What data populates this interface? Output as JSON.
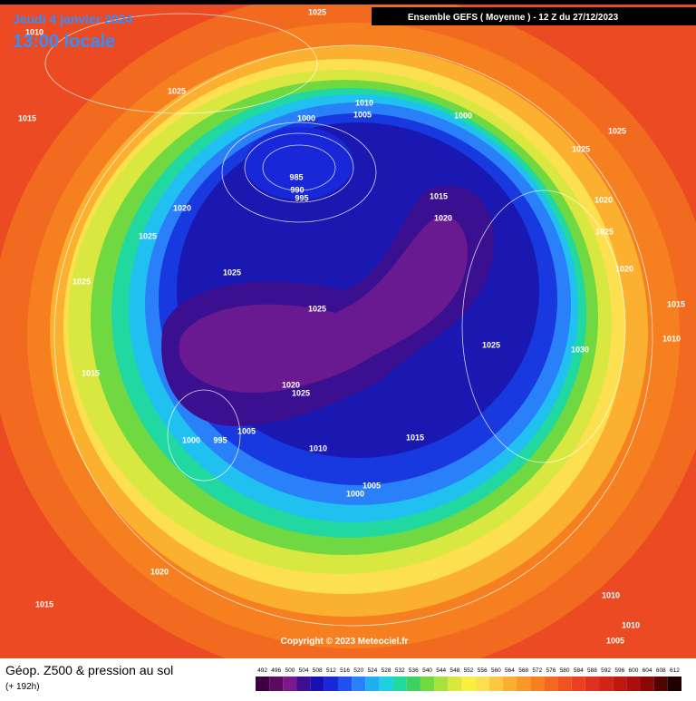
{
  "header": {
    "date": "Jeudi 4 janvier 2024",
    "time": "13:00 locale",
    "model": "Ensemble GEFS  ( Moyenne )  -  12 Z du 27/12/2023"
  },
  "isobars": [
    "1025",
    "1010",
    "1025",
    "1015",
    "1000",
    "1010",
    "1005",
    "1000",
    "1025",
    "1025",
    "985",
    "990",
    "995",
    "1015",
    "1020",
    "1020",
    "1025",
    "1020",
    "1025",
    "1020",
    "1025",
    "1025",
    "1025",
    "1015",
    "1010",
    "1025",
    "1030",
    "1015",
    "1020",
    "1025",
    "1005",
    "1000",
    "995",
    "1010",
    "1015",
    "1005",
    "1000",
    "1020",
    "1015",
    "1010",
    "1010",
    "1005"
  ],
  "copyright": "Copyright © 2023 Meteociel.fr",
  "footer": {
    "title": "Géop. Z500 & pression au sol",
    "lead": "(+ 192h)"
  },
  "scale": {
    "values": [
      492,
      496,
      500,
      504,
      508,
      512,
      516,
      520,
      524,
      528,
      532,
      536,
      540,
      544,
      548,
      552,
      556,
      560,
      564,
      568,
      572,
      576,
      580,
      584,
      588,
      592,
      596,
      600,
      604,
      608,
      612
    ],
    "colors": [
      "#3a0040",
      "#5a0a60",
      "#7a1a8a",
      "#3a1090",
      "#1a10b0",
      "#1828d8",
      "#2050f0",
      "#2a80f8",
      "#20b0f0",
      "#20d0e0",
      "#20d8a0",
      "#40d060",
      "#70d840",
      "#a8e040",
      "#d8e840",
      "#f8f040",
      "#fde050",
      "#fcc840",
      "#fbb030",
      "#f89828",
      "#f68020",
      "#f26a20",
      "#ef5420",
      "#ea4020",
      "#e03020",
      "#d02418",
      "#c01810",
      "#a81010",
      "#880808",
      "#500404",
      "#200000"
    ]
  }
}
